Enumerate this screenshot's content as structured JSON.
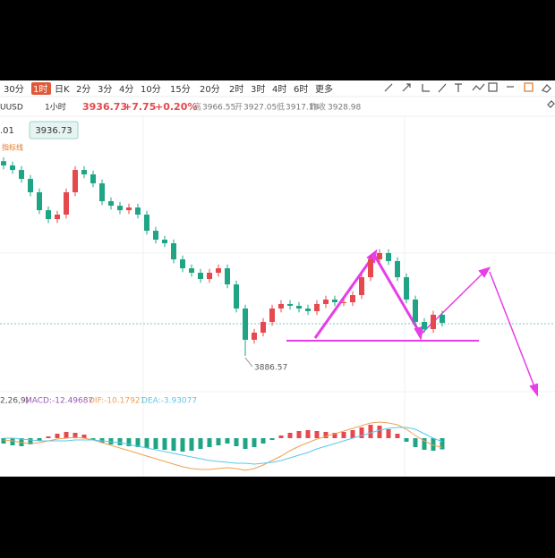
{
  "toolbar": {
    "periods": [
      "30分",
      "1时",
      "日K",
      "2分",
      "3分",
      "4分",
      "10分",
      "15分",
      "20分",
      "2时",
      "3时",
      "4时",
      "6时",
      "更多"
    ],
    "active": 1
  },
  "header": {
    "symbol": "UUSD",
    "interval": "1小时",
    "price": "3936.73",
    "change": "+7.75",
    "change_pct": "+0.20%",
    "high_label": "高",
    "high": "3966.55",
    "open_label": "开",
    "open": "3927.05",
    "low_label": "低",
    "low": "3917.18",
    "prev_label": "昨收",
    "prev": "3928.98"
  },
  "price_box": {
    "left": ".01",
    "price": "3936.73"
  },
  "indicator_label": "指标线",
  "macd_header": {
    "params": "2,26,9)",
    "macd": "MACD:-12.49687",
    "dif": "DIF:-10.17921",
    "dea": "DEA:-3.93077"
  },
  "chart_data": {
    "type": "candlestick",
    "up_color": "#e5484d",
    "down_color": "#1fa586",
    "ylim": [
      3842,
      4253
    ],
    "open": [
      4190.0,
      4183.3,
      4176.3,
      4162.4,
      4141.5,
      4113.6,
      4099.7,
      4106.7,
      4141.5,
      4176.3,
      4169.4,
      4155.4,
      4127.6,
      4120.6,
      4113.6,
      4117.8,
      4106.7,
      4081.6,
      4067.7,
      4062.1,
      4037.0,
      4023.1,
      4016.1,
      4006.4,
      4016.1,
      4023.1,
      3998.0,
      3960.4,
      3911.7,
      3922.8,
      3939.5,
      3960.4,
      3967.4,
      3964.6,
      3960.4,
      3956.3,
      3967.4,
      3974.4,
      3970.2,
      3970.2,
      3981.3,
      4009.2,
      4037.0,
      4046.8,
      4034.3,
      4009.2,
      3974.4,
      3939.5,
      3928.4,
      3950.7
    ],
    "high": [
      4196.0,
      4189.3,
      4182.3,
      4168.4,
      4147.5,
      4119.6,
      4112.7,
      4147.5,
      4182.3,
      4182.3,
      4175.4,
      4161.4,
      4133.6,
      4126.6,
      4123.8,
      4123.8,
      4112.7,
      4087.6,
      4073.7,
      4068.1,
      4043.0,
      4029.1,
      4022.1,
      4022.1,
      4029.1,
      4029.1,
      4004.0,
      3966.4,
      3928.8,
      3945.5,
      3966.4,
      3973.4,
      3973.4,
      3970.6,
      3966.4,
      3973.4,
      3980.4,
      3980.4,
      3976.2,
      3987.3,
      4015.2,
      4043.0,
      4052.8,
      4052.8,
      4040.3,
      4015.2,
      3980.4,
      3945.5,
      3956.7,
      3956.7
    ],
    "low": [
      4177.3,
      4170.3,
      4156.4,
      4135.5,
      4107.6,
      4093.7,
      4093.7,
      4100.7,
      4135.5,
      4163.4,
      4149.4,
      4121.6,
      4114.6,
      4107.6,
      4107.6,
      4100.7,
      4075.6,
      4061.7,
      4056.1,
      4031.0,
      4017.1,
      4010.1,
      4000.4,
      4000.4,
      4010.1,
      3992.0,
      3954.4,
      3886.57,
      3905.7,
      3916.8,
      3933.5,
      3954.4,
      3958.6,
      3954.4,
      3950.3,
      3950.3,
      3961.4,
      3964.2,
      3964.2,
      3964.2,
      3975.3,
      4003.2,
      4031.0,
      4028.3,
      4003.2,
      3968.4,
      3933.5,
      3922.4,
      3922.4,
      3932.0
    ],
    "close": [
      4183.3,
      4176.3,
      4162.4,
      4141.5,
      4113.6,
      4099.7,
      4106.7,
      4141.5,
      4176.3,
      4169.4,
      4155.4,
      4127.6,
      4120.6,
      4113.6,
      4117.8,
      4106.7,
      4081.6,
      4067.7,
      4062.1,
      4037.0,
      4023.1,
      4016.1,
      4006.4,
      4016.1,
      4023.1,
      3998.0,
      3960.4,
      3911.7,
      3922.8,
      3939.5,
      3960.4,
      3967.4,
      3964.6,
      3960.4,
      3956.3,
      3967.4,
      3974.4,
      3970.2,
      3970.2,
      3981.3,
      4009.2,
      4037.0,
      4046.8,
      4034.3,
      4009.2,
      3974.4,
      3939.5,
      3928.4,
      3950.7,
      3938.0
    ],
    "low_marker": 27,
    "macd": {
      "ylim": [
        -40,
        40
      ],
      "dif_color": "#f0a050",
      "dea_color": "#5bc8e8",
      "hist": [
        -6,
        -8,
        -9,
        -7,
        -3,
        2,
        5,
        7,
        6,
        4,
        -2,
        -5,
        -7,
        -8,
        -9,
        -10,
        -11,
        -12,
        -13,
        -14,
        -15,
        -14,
        -12,
        -10,
        -8,
        -6,
        -9,
        -12,
        -10,
        -6,
        -2,
        3,
        6,
        8,
        9,
        8,
        7,
        6,
        7,
        9,
        12,
        15,
        14,
        10,
        5,
        -4,
        -10,
        -13,
        -14,
        -12.5
      ],
      "dif": [
        -2,
        -3,
        -5,
        -6,
        -5,
        -3,
        -1,
        0,
        1,
        0,
        -2,
        -5,
        -8,
        -11,
        -14,
        -17,
        -20,
        -23,
        -26,
        -29,
        -32,
        -34,
        -35,
        -35,
        -34,
        -33,
        -34,
        -36,
        -34,
        -30,
        -25,
        -20,
        -14,
        -9,
        -5,
        -1,
        2,
        5,
        8,
        11,
        14,
        17,
        18,
        17,
        15,
        10,
        3,
        -3,
        -8,
        -10.2
      ],
      "dea": [
        0,
        0,
        -1,
        -2,
        -3,
        -3,
        -3,
        -3,
        -2,
        -2,
        -2,
        -3,
        -4,
        -5,
        -7,
        -9,
        -11,
        -13,
        -15,
        -17,
        -19,
        -21,
        -23,
        -25,
        -26,
        -27,
        -28,
        -28,
        -29,
        -28,
        -27,
        -25,
        -22,
        -19,
        -16,
        -12,
        -9,
        -6,
        -3,
        0,
        3,
        6,
        9,
        11,
        12,
        12,
        10,
        5,
        0,
        -3.9
      ]
    }
  }
}
